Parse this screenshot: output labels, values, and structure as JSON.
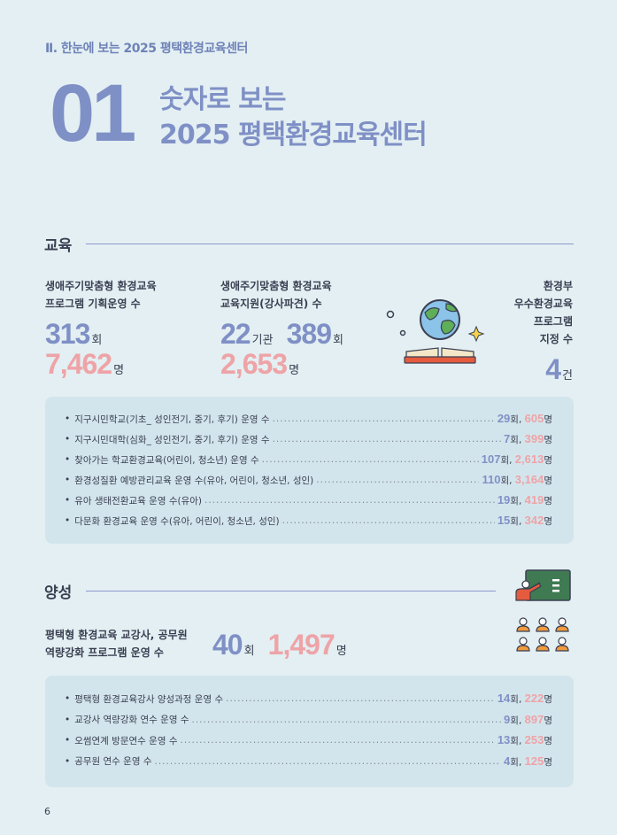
{
  "header": {
    "breadcrumb": "Ⅱ. 한눈에 보는 2025 평택환경교육센터",
    "big_number": "01",
    "title_line1": "숫자로 보는",
    "title_line2": "2025 평택환경교육센터"
  },
  "education": {
    "section_label": "교육",
    "stat1": {
      "label_line1": "생애주기맞춤형 환경교육",
      "label_line2": "프로그램 기획운영 수",
      "count": "313",
      "count_unit": "회",
      "people": "7,462",
      "people_unit": "명"
    },
    "stat2": {
      "label_line1": "생애주기맞춤형 환경교육",
      "label_line2": "교육지원(강사파견) 수",
      "orgs": "22",
      "orgs_unit": "기관",
      "count": "389",
      "count_unit": "회",
      "people": "2,653",
      "people_unit": "명"
    },
    "stat3": {
      "label_line1": "환경부",
      "label_line2": "우수환경교육",
      "label_line3": "프로그램",
      "label_line4": "지정 수",
      "count": "4",
      "count_unit": "건"
    },
    "items": [
      {
        "text": "지구시민학교(기초_ 성인전기, 중기, 후기) 운영 수",
        "count": "29",
        "count_unit": "회, ",
        "people": "605",
        "people_unit": "명"
      },
      {
        "text": "지구시민대학(심화_ 성인전기, 중기, 후기) 운영 수",
        "count": "7",
        "count_unit": "회, ",
        "people": "399",
        "people_unit": "명"
      },
      {
        "text": "찾아가는 학교환경교육(어린이, 청소년) 운영 수",
        "count": "107",
        "count_unit": "회, ",
        "people": "2,613",
        "people_unit": "명"
      },
      {
        "text": "환경성질환 예방관리교육 운영 수(유아, 어린이, 청소년, 성인)",
        "count": "110",
        "count_unit": "회, ",
        "people": "3,164",
        "people_unit": "명"
      },
      {
        "text": "유아 생태전환교육 운영 수(유아)",
        "count": "19",
        "count_unit": "회, ",
        "people": "419",
        "people_unit": "명"
      },
      {
        "text": "다문화 환경교육 운영 수(유아, 어린이, 청소년, 성인)",
        "count": "15",
        "count_unit": "회, ",
        "people": "342",
        "people_unit": "명"
      }
    ]
  },
  "training": {
    "section_label": "양성",
    "stat": {
      "label_line1": "평택형 환경교육 교강사, 공무원",
      "label_line2": "역량강화 프로그램 운영 수",
      "count": "40",
      "count_unit": "회",
      "people": "1,497",
      "people_unit": "명"
    },
    "items": [
      {
        "text": "평택형 환경교육강사 양성과정 운영 수",
        "count": "14",
        "count_unit": "회, ",
        "people": "222",
        "people_unit": "명"
      },
      {
        "text": "교강사 역량강화 연수 운영 수",
        "count": "9",
        "count_unit": "회, ",
        "people": "897",
        "people_unit": "명"
      },
      {
        "text": "오썸연계 방문연수 운영 수",
        "count": "13",
        "count_unit": "회, ",
        "people": "253",
        "people_unit": "명"
      },
      {
        "text": "공무원 연수 운영 수",
        "count": "4",
        "count_unit": "회, ",
        "people": "125",
        "people_unit": "명"
      }
    ]
  },
  "footer": {
    "page_number": "6"
  },
  "colors": {
    "accent_blue": "#7f90c6",
    "accent_pink": "#eea3a7",
    "background": "#e3eff2",
    "panel": "#d3e5ec"
  },
  "icons": [
    "globe-book-icon",
    "sparkle-icon",
    "teacher-board-icon",
    "audience-icon"
  ]
}
